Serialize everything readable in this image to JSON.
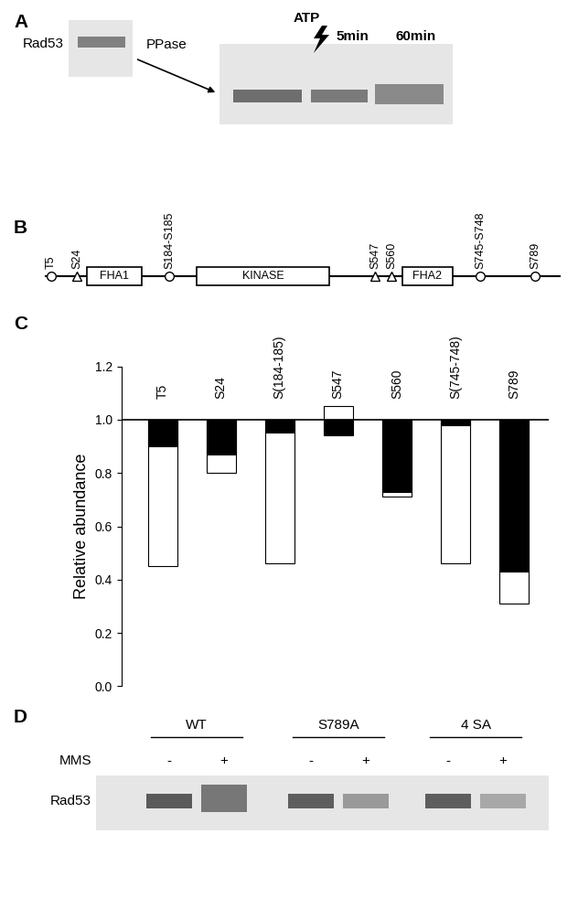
{
  "panel_a": {
    "label": "A",
    "protein": "Rad53",
    "treatment": "PPase",
    "addition": "ATP",
    "times": [
      "5min",
      "60min"
    ]
  },
  "panel_b": {
    "label": "B",
    "domains": [
      "FHA1",
      "KINASE",
      "FHA2"
    ],
    "sites": [
      {
        "label": "T5",
        "marker": "circle"
      },
      {
        "label": "S24",
        "marker": "triangle"
      },
      {
        "label": "S184-S185",
        "marker": "circle"
      },
      {
        "label": "S547",
        "marker": "triangle"
      },
      {
        "label": "S560",
        "marker": "triangle"
      },
      {
        "label": "S745-S748",
        "marker": "circle"
      },
      {
        "label": "S789",
        "marker": "circle"
      }
    ]
  },
  "chart_data": {
    "type": "bar",
    "label": "C",
    "ylabel": "Relative abundance",
    "categories": [
      "T5",
      "S24",
      "S(184-185)",
      "S547",
      "S560",
      "S(745-748)",
      "S789"
    ],
    "baseline": 1.0,
    "series": [
      {
        "color": "#ffffff",
        "values": [
          0.45,
          0.8,
          0.46,
          1.05,
          0.71,
          0.46,
          0.31
        ]
      },
      {
        "color": "#000000",
        "values": [
          0.9,
          0.87,
          0.95,
          0.94,
          0.73,
          0.98,
          0.43
        ]
      }
    ],
    "ylim": [
      0.0,
      1.2
    ],
    "yticks": [
      0.0,
      0.2,
      0.4,
      0.6,
      0.8,
      1.0,
      1.2
    ]
  },
  "panel_d": {
    "label": "D",
    "protein": "Rad53",
    "treatment": "MMS",
    "strains": [
      "WT",
      "S789A",
      "4 SA"
    ],
    "conditions": [
      "-",
      "+"
    ]
  }
}
